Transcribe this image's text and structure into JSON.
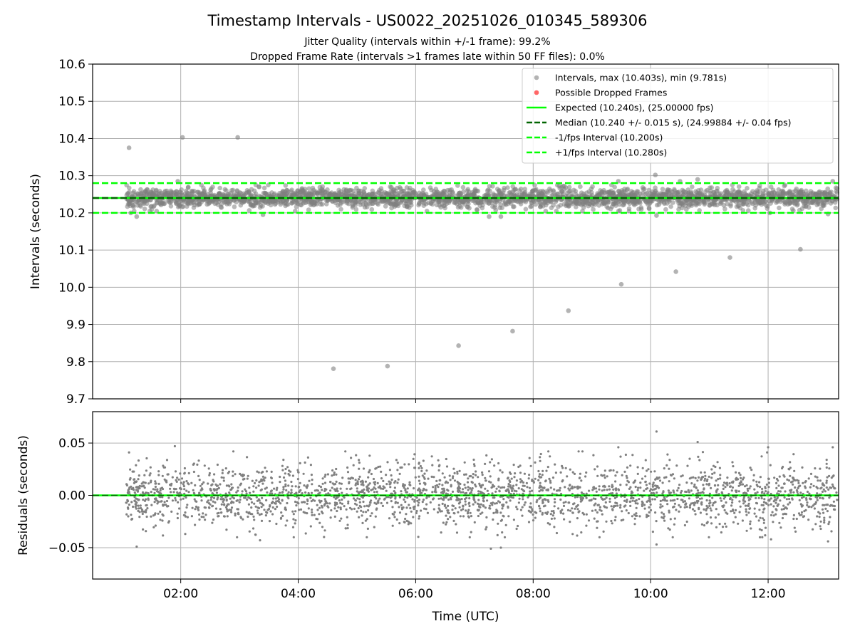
{
  "colors": {
    "intervals": "#808080",
    "dropped": "#ff0000",
    "expected": "#00ff00",
    "median": "#006400",
    "fps_band": "#00ff00",
    "grid": "#b0b0b0"
  },
  "chart_data": [
    {
      "type": "scatter",
      "title": "Timestamp Intervals - US0022_20251026_010345_589306",
      "subtitle": [
        "Jitter Quality (intervals within +/-1 frame): 99.2%",
        "Dropped Frame Rate (intervals >1 frames late within 50 FF files): 0.0%"
      ],
      "xlabel": "",
      "ylabel": "Intervals (seconds)",
      "x_range_hours": [
        0.5,
        13.2
      ],
      "ylim": [
        9.7,
        10.6
      ],
      "y_ticks": [
        "9.7",
        "9.8",
        "9.9",
        "10.0",
        "10.1",
        "10.2",
        "10.3",
        "10.4",
        "10.5",
        "10.6"
      ],
      "grid": true,
      "legend_position": "upper-right",
      "series": [
        {
          "name": "Intervals, max (10.403s), min (9.781s)",
          "marker": "circle",
          "dense_band": {
            "x_range_hours": [
              1.07,
              13.2
            ],
            "center": 10.24,
            "spread": 0.015
          },
          "outliers": [
            {
              "x_hours": 1.12,
              "y": 10.375
            },
            {
              "x_hours": 2.03,
              "y": 10.403
            },
            {
              "x_hours": 2.97,
              "y": 10.403
            },
            {
              "x_hours": 1.15,
              "y": 10.2
            },
            {
              "x_hours": 1.25,
              "y": 10.19
            },
            {
              "x_hours": 1.95,
              "y": 10.285
            },
            {
              "x_hours": 3.4,
              "y": 10.195
            },
            {
              "x_hours": 7.25,
              "y": 10.19
            },
            {
              "x_hours": 7.45,
              "y": 10.19
            },
            {
              "x_hours": 9.45,
              "y": 10.285
            },
            {
              "x_hours": 10.08,
              "y": 10.302
            },
            {
              "x_hours": 10.1,
              "y": 10.193
            },
            {
              "x_hours": 10.5,
              "y": 10.285
            },
            {
              "x_hours": 10.8,
              "y": 10.29
            },
            {
              "x_hours": 12.03,
              "y": 10.2
            },
            {
              "x_hours": 13.02,
              "y": 10.197
            },
            {
              "x_hours": 13.1,
              "y": 10.285
            },
            {
              "x_hours": 4.6,
              "y": 9.781
            },
            {
              "x_hours": 5.52,
              "y": 9.788
            },
            {
              "x_hours": 6.73,
              "y": 9.843
            },
            {
              "x_hours": 7.65,
              "y": 9.882
            },
            {
              "x_hours": 8.6,
              "y": 9.937
            },
            {
              "x_hours": 9.5,
              "y": 10.008
            },
            {
              "x_hours": 10.43,
              "y": 10.042
            },
            {
              "x_hours": 11.35,
              "y": 10.08
            },
            {
              "x_hours": 12.55,
              "y": 10.102
            }
          ]
        },
        {
          "name": "Possible Dropped Frames",
          "marker": "circle",
          "points": []
        },
        {
          "name": "Expected (10.240s), (25.00000 fps)",
          "line": "solid",
          "y": 10.24
        },
        {
          "name": "Median (10.240 +/- 0.015 s), (24.99884 +/- 0.04 fps)",
          "line": "dashed",
          "y": 10.24
        },
        {
          "name": "-1/fps Interval (10.200s)",
          "line": "dashed",
          "y": 10.2
        },
        {
          "name": "+1/fps Interval (10.280s)",
          "line": "dashed",
          "y": 10.28
        }
      ]
    },
    {
      "type": "scatter",
      "title": "",
      "xlabel": "Time (UTC)",
      "ylabel": "Residuals (seconds)",
      "x_range_hours": [
        0.5,
        13.2
      ],
      "x_ticks": [
        {
          "hour": 2,
          "label": "02:00"
        },
        {
          "hour": 4,
          "label": "04:00"
        },
        {
          "hour": 6,
          "label": "06:00"
        },
        {
          "hour": 8,
          "label": "08:00"
        },
        {
          "hour": 10,
          "label": "10:00"
        },
        {
          "hour": 12,
          "label": "12:00"
        }
      ],
      "ylim": [
        -0.08,
        0.08
      ],
      "y_ticks": [
        {
          "value": 0.05,
          "label": "0.05"
        },
        {
          "value": 0.0,
          "label": "0.00"
        },
        {
          "value": -0.05,
          "label": "−0.05"
        }
      ],
      "grid": true,
      "series": [
        {
          "name": "",
          "marker": "dot",
          "dense_band": {
            "x_range_hours": [
              1.07,
              13.2
            ],
            "center": 0.0,
            "spread": 0.015
          },
          "outliers": [
            {
              "x_hours": 1.12,
              "y": 0.041
            },
            {
              "x_hours": 1.25,
              "y": -0.049
            },
            {
              "x_hours": 1.9,
              "y": 0.047
            },
            {
              "x_hours": 3.35,
              "y": -0.043
            },
            {
              "x_hours": 7.28,
              "y": -0.051
            },
            {
              "x_hours": 7.45,
              "y": -0.05
            },
            {
              "x_hours": 9.45,
              "y": 0.046
            },
            {
              "x_hours": 10.1,
              "y": 0.061
            },
            {
              "x_hours": 10.1,
              "y": -0.047
            },
            {
              "x_hours": 10.8,
              "y": 0.051
            },
            {
              "x_hours": 11.9,
              "y": -0.04
            },
            {
              "x_hours": 12.05,
              "y": -0.042
            },
            {
              "x_hours": 12.0,
              "y": 0.046
            },
            {
              "x_hours": 13.02,
              "y": -0.044
            },
            {
              "x_hours": 13.1,
              "y": 0.046
            }
          ]
        },
        {
          "name": "",
          "line": "solid",
          "y": 0.0
        },
        {
          "name": "",
          "line": "dashed",
          "y": 0.0
        }
      ]
    }
  ]
}
